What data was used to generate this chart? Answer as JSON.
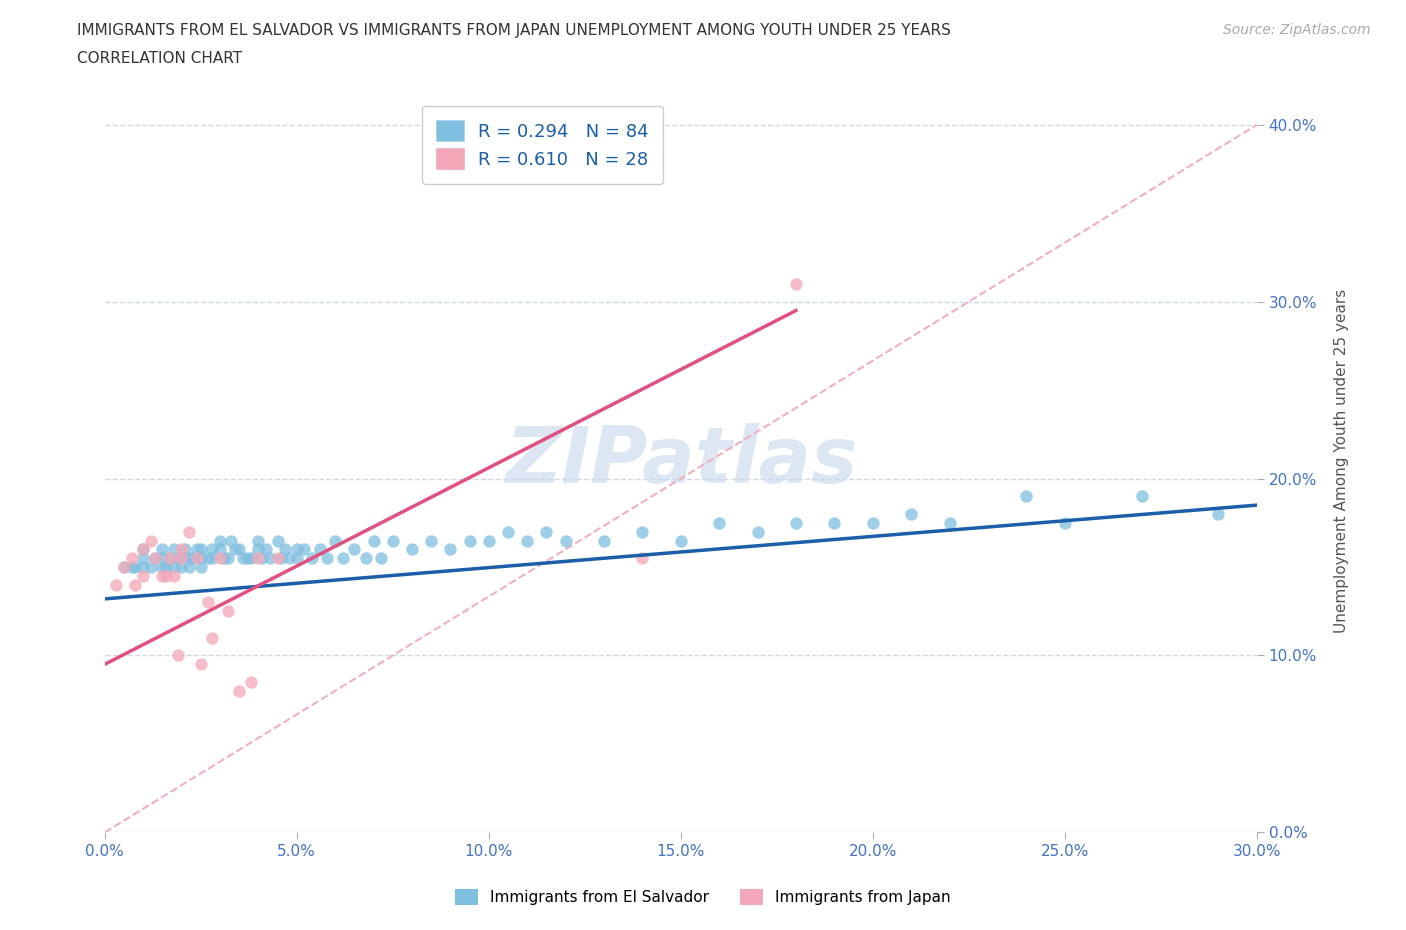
{
  "title_line1": "IMMIGRANTS FROM EL SALVADOR VS IMMIGRANTS FROM JAPAN UNEMPLOYMENT AMONG YOUTH UNDER 25 YEARS",
  "title_line2": "CORRELATION CHART",
  "source": "Source: ZipAtlas.com",
  "ylabel": "Unemployment Among Youth under 25 years",
  "watermark": "ZIPatlas",
  "legend_label1": "Immigrants from El Salvador",
  "legend_label2": "Immigrants from Japan",
  "R1": 0.294,
  "N1": 84,
  "R2": 0.61,
  "N2": 28,
  "xmin": 0.0,
  "xmax": 0.3,
  "ymin": 0.0,
  "ymax": 0.42,
  "color1": "#7fbfdf",
  "color2": "#f4a7b8",
  "trendline1_color": "#1a5fa8",
  "trendline2_color": "#e05080",
  "diagonal_color": "#f0b0c0",
  "background": "#ffffff",
  "grid_color": "#d0d8e8",
  "salvador_x": [
    0.005,
    0.007,
    0.008,
    0.01,
    0.01,
    0.01,
    0.012,
    0.013,
    0.015,
    0.015,
    0.015,
    0.016,
    0.017,
    0.018,
    0.018,
    0.019,
    0.02,
    0.02,
    0.021,
    0.022,
    0.022,
    0.023,
    0.024,
    0.025,
    0.025,
    0.025,
    0.027,
    0.028,
    0.028,
    0.03,
    0.03,
    0.031,
    0.032,
    0.033,
    0.034,
    0.035,
    0.036,
    0.037,
    0.038,
    0.04,
    0.04,
    0.041,
    0.042,
    0.043,
    0.045,
    0.046,
    0.047,
    0.048,
    0.05,
    0.05,
    0.052,
    0.054,
    0.056,
    0.058,
    0.06,
    0.062,
    0.065,
    0.068,
    0.07,
    0.072,
    0.075,
    0.08,
    0.085,
    0.09,
    0.095,
    0.1,
    0.105,
    0.11,
    0.115,
    0.12,
    0.13,
    0.14,
    0.15,
    0.16,
    0.17,
    0.18,
    0.19,
    0.2,
    0.21,
    0.22,
    0.24,
    0.25,
    0.27,
    0.29
  ],
  "salvador_y": [
    0.15,
    0.15,
    0.15,
    0.15,
    0.155,
    0.16,
    0.15,
    0.155,
    0.15,
    0.155,
    0.16,
    0.15,
    0.155,
    0.15,
    0.16,
    0.155,
    0.15,
    0.155,
    0.16,
    0.15,
    0.155,
    0.155,
    0.16,
    0.155,
    0.15,
    0.16,
    0.155,
    0.16,
    0.155,
    0.16,
    0.165,
    0.155,
    0.155,
    0.165,
    0.16,
    0.16,
    0.155,
    0.155,
    0.155,
    0.16,
    0.165,
    0.155,
    0.16,
    0.155,
    0.165,
    0.155,
    0.16,
    0.155,
    0.16,
    0.155,
    0.16,
    0.155,
    0.16,
    0.155,
    0.165,
    0.155,
    0.16,
    0.155,
    0.165,
    0.155,
    0.165,
    0.16,
    0.165,
    0.16,
    0.165,
    0.165,
    0.17,
    0.165,
    0.17,
    0.165,
    0.165,
    0.17,
    0.165,
    0.175,
    0.17,
    0.175,
    0.175,
    0.175,
    0.18,
    0.175,
    0.19,
    0.175,
    0.19,
    0.18
  ],
  "japan_x": [
    0.003,
    0.005,
    0.007,
    0.008,
    0.01,
    0.01,
    0.012,
    0.013,
    0.015,
    0.016,
    0.017,
    0.018,
    0.019,
    0.02,
    0.02,
    0.022,
    0.024,
    0.025,
    0.027,
    0.028,
    0.03,
    0.032,
    0.035,
    0.038,
    0.04,
    0.045,
    0.14,
    0.18
  ],
  "japan_y": [
    0.14,
    0.15,
    0.155,
    0.14,
    0.145,
    0.16,
    0.165,
    0.155,
    0.145,
    0.145,
    0.155,
    0.145,
    0.1,
    0.16,
    0.155,
    0.17,
    0.155,
    0.095,
    0.13,
    0.11,
    0.155,
    0.125,
    0.08,
    0.085,
    0.155,
    0.155,
    0.155,
    0.31
  ],
  "trendline1_x0": 0.0,
  "trendline1_y0": 0.132,
  "trendline1_x1": 0.3,
  "trendline1_y1": 0.185,
  "trendline2_x0": 0.0,
  "trendline2_y0": 0.095,
  "trendline2_x1": 0.18,
  "trendline2_y1": 0.295
}
